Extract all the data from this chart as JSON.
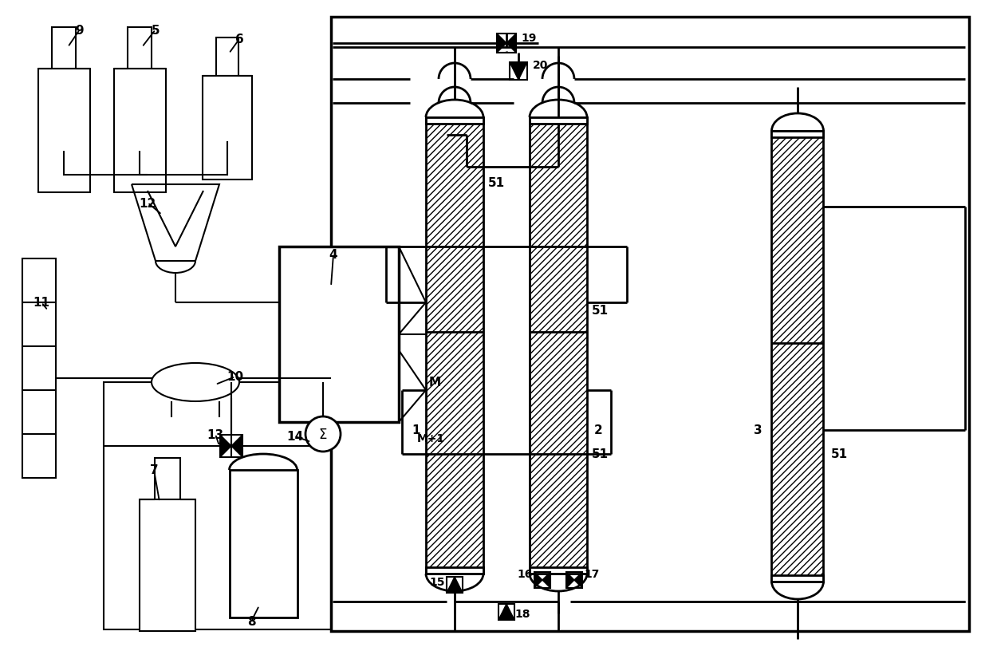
{
  "bg": "#ffffff",
  "lc": "#000000",
  "lw": 1.5,
  "lw2": 2.0,
  "lw3": 2.5
}
